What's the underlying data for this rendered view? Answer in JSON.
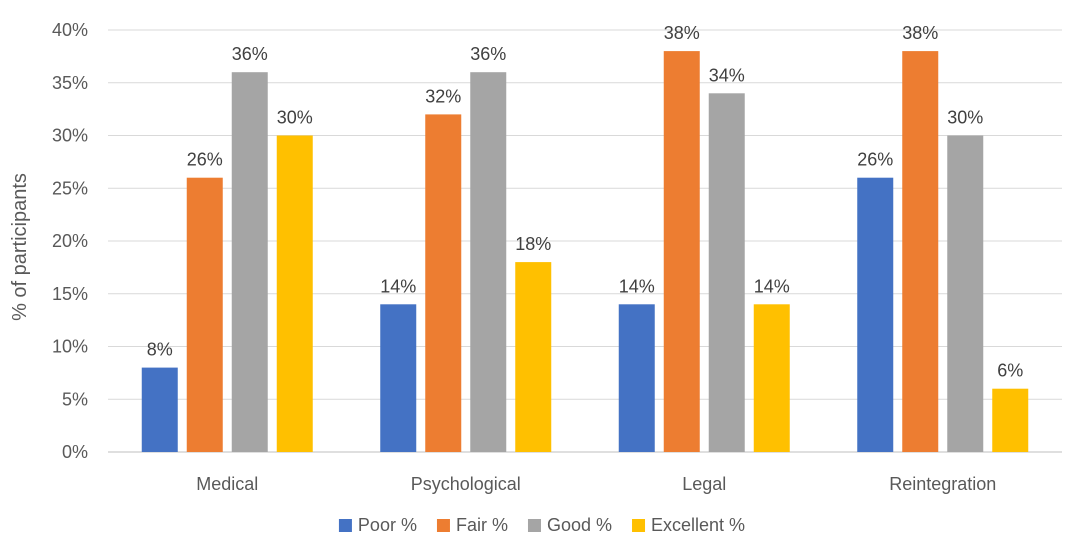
{
  "chart_data": {
    "type": "bar",
    "title": "",
    "xlabel": "",
    "ylabel": "% of participants",
    "categories": [
      "Medical",
      "Psychological",
      "Legal",
      "Reintegration"
    ],
    "series": [
      {
        "name": "Poor %",
        "color": "#4472C4",
        "values": [
          8,
          14,
          14,
          26
        ]
      },
      {
        "name": "Fair %",
        "color": "#ED7D31",
        "values": [
          26,
          32,
          38,
          38
        ]
      },
      {
        "name": "Good %",
        "color": "#A5A5A5",
        "values": [
          36,
          36,
          34,
          30
        ]
      },
      {
        "name": "Excellent %",
        "color": "#FFC000",
        "values": [
          30,
          18,
          14,
          6
        ]
      }
    ],
    "ylim": [
      0,
      40
    ],
    "yticks": [
      0,
      5,
      10,
      15,
      20,
      25,
      30,
      35,
      40
    ],
    "tick_suffix": "%",
    "value_suffix": "%",
    "grid": true,
    "legend_position": "bottom"
  }
}
